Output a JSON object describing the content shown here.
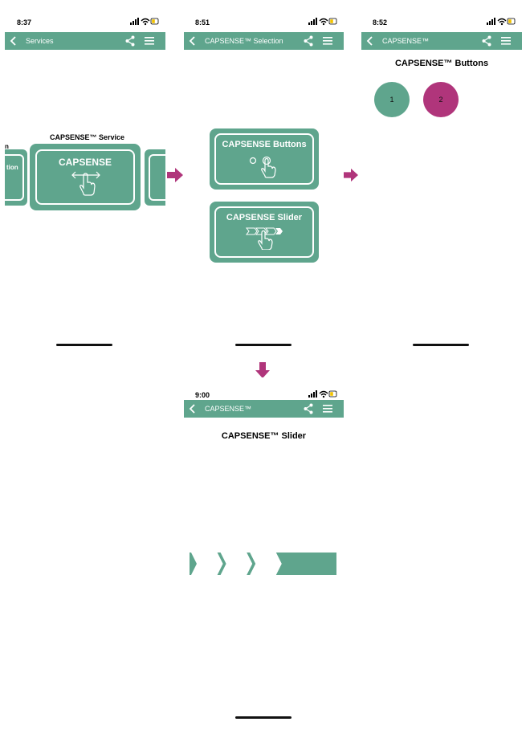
{
  "colors": {
    "brand_green": "#5fa58d",
    "accent_magenta": "#b0357b",
    "arrow": "#b0357b"
  },
  "screens": {
    "services": {
      "time": "8:37",
      "nav_title": "Services",
      "carousel_title": "CAPSENSE™ Service",
      "left_partial_title": "n",
      "left_partial_label": "tion",
      "card_label": "CAPSENSE",
      "card_icon": "swipe-hand-icon"
    },
    "selection": {
      "time": "8:51",
      "nav_title": "CAPSENSE™ Selection",
      "buttons_card_label": "CAPSENSE Buttons",
      "slider_card_label": "CAPSENSE Slider"
    },
    "buttons": {
      "time": "8:52",
      "nav_title": "CAPSENSE™",
      "heading": "CAPSENSE™ Buttons",
      "button_1_label": "1",
      "button_2_label": "2",
      "button_1_color": "#5fa58d",
      "button_2_color": "#b0357b"
    },
    "slider": {
      "time": "9:00",
      "nav_title": "CAPSENSE™",
      "heading": "CAPSENSE™ Slider",
      "segments_total": 5,
      "segments_unfilled": 3
    }
  }
}
